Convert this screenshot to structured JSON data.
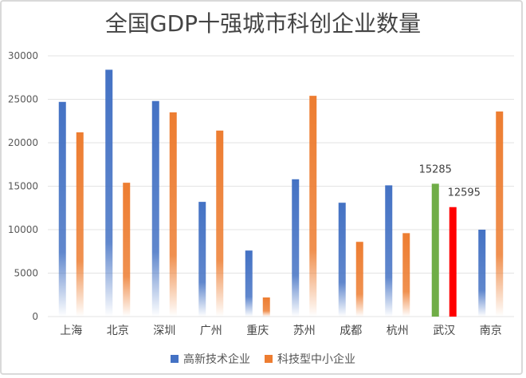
{
  "chart_data": {
    "type": "bar",
    "title": "全国GDP十强城市科创企业数量",
    "categories": [
      "上海",
      "北京",
      "深圳",
      "广州",
      "重庆",
      "苏州",
      "成都",
      "杭州",
      "武汉",
      "南京"
    ],
    "series": [
      {
        "name": "高新技术企业",
        "color": "#4472c4",
        "values": [
          24700,
          28400,
          24800,
          13200,
          7600,
          15800,
          13100,
          15100,
          15285,
          10000
        ]
      },
      {
        "name": "科技型中小企业",
        "color": "#ed7d31",
        "values": [
          21200,
          15400,
          23500,
          21400,
          2200,
          25400,
          8600,
          9600,
          12595,
          23600
        ]
      }
    ],
    "highlight": {
      "category": "武汉",
      "colors": [
        "#70ad47",
        "#ff0000"
      ]
    },
    "data_labels": [
      {
        "category": "武汉",
        "series": 0,
        "text": "15285"
      },
      {
        "category": "武汉",
        "series": 1,
        "text": "12595"
      }
    ],
    "ylim": [
      0,
      30000
    ],
    "yticks": [
      0,
      5000,
      10000,
      15000,
      20000,
      25000,
      30000
    ],
    "grid": true,
    "legend_position": "bottom"
  }
}
